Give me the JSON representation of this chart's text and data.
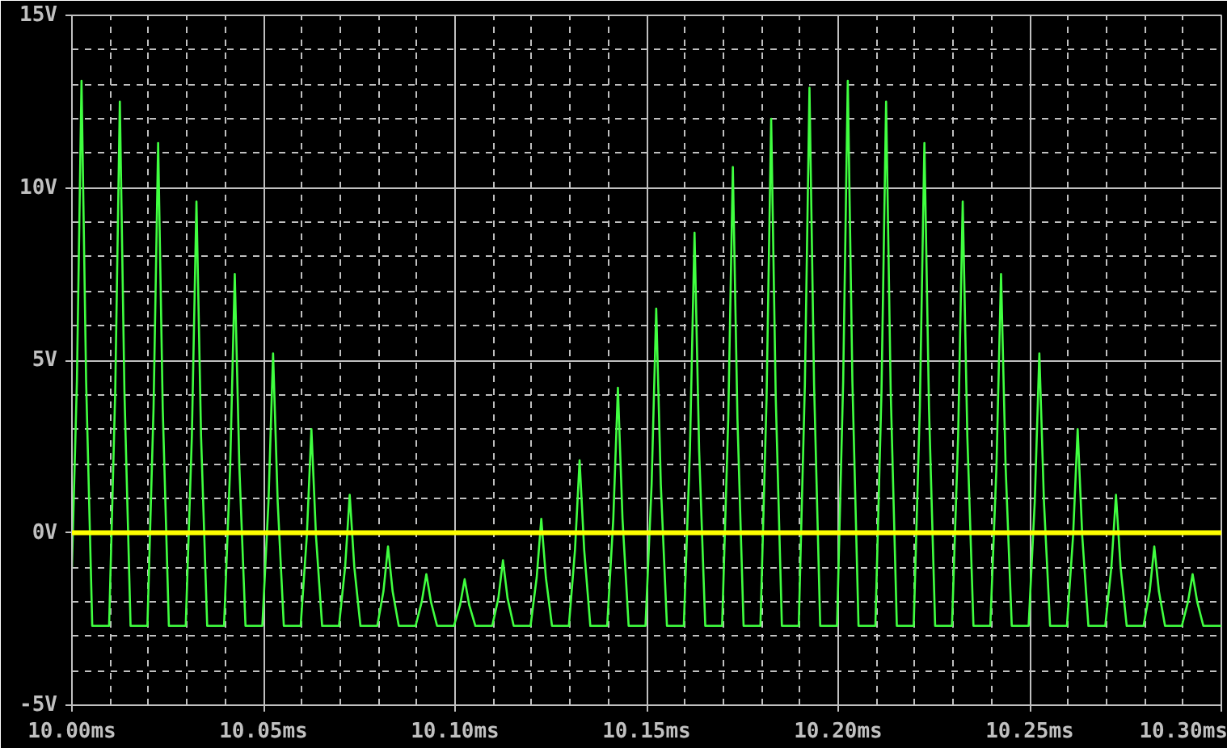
{
  "chart_data": {
    "type": "line",
    "xlim": [
      10.0,
      10.3
    ],
    "ylim": [
      -5,
      15
    ],
    "xticks": [
      {
        "value": 10.0,
        "label": "10.00ms"
      },
      {
        "value": 10.05,
        "label": "10.05ms"
      },
      {
        "value": 10.1,
        "label": "10.10ms"
      },
      {
        "value": 10.15,
        "label": "10.15ms"
      },
      {
        "value": 10.2,
        "label": "10.20ms"
      },
      {
        "value": 10.25,
        "label": "10.25ms"
      },
      {
        "value": 10.3,
        "label": "10.30ms"
      }
    ],
    "yticks": [
      {
        "value": -5,
        "label": "-5V"
      },
      {
        "value": 0,
        "label": "0V"
      },
      {
        "value": 5,
        "label": "5V"
      },
      {
        "value": 10,
        "label": "10V"
      },
      {
        "value": 15,
        "label": "15V"
      }
    ],
    "grid": true,
    "marker": "none",
    "line_style": "solid",
    "ref_lines": [
      {
        "axis": "y",
        "value": 0,
        "color": "#ffff00",
        "line_style": "solid"
      }
    ],
    "series": [
      {
        "color": "#40ff40",
        "x": [
          10.0,
          10.0013,
          10.0025,
          10.0037,
          10.0053,
          10.0097,
          10.0113,
          10.0125,
          10.0137,
          10.0153,
          10.0197,
          10.0213,
          10.0225,
          10.0237,
          10.0253,
          10.0297,
          10.0313,
          10.0325,
          10.0337,
          10.0353,
          10.0397,
          10.0413,
          10.0425,
          10.0437,
          10.0453,
          10.0497,
          10.0513,
          10.0525,
          10.0537,
          10.0553,
          10.0597,
          10.0613,
          10.0625,
          10.0637,
          10.0653,
          10.0697,
          10.0713,
          10.0725,
          10.0737,
          10.0753,
          10.0797,
          10.0813,
          10.0825,
          10.0837,
          10.0853,
          10.0897,
          10.0913,
          10.0925,
          10.0937,
          10.0953,
          10.0997,
          10.1013,
          10.1025,
          10.1037,
          10.1053,
          10.1097,
          10.1113,
          10.1125,
          10.1137,
          10.1153,
          10.1197,
          10.1213,
          10.1225,
          10.1237,
          10.1253,
          10.1297,
          10.1313,
          10.1325,
          10.1337,
          10.1353,
          10.1397,
          10.1413,
          10.1425,
          10.1437,
          10.1453,
          10.1497,
          10.1513,
          10.1525,
          10.1537,
          10.1553,
          10.1597,
          10.1613,
          10.1625,
          10.1637,
          10.1653,
          10.1697,
          10.1713,
          10.1725,
          10.1737,
          10.1753,
          10.1797,
          10.1813,
          10.1825,
          10.1837,
          10.1853,
          10.1897,
          10.1913,
          10.1925,
          10.1937,
          10.1953,
          10.1997,
          10.2013,
          10.2025,
          10.2037,
          10.2053,
          10.2097,
          10.2113,
          10.2125,
          10.2137,
          10.2153,
          10.2197,
          10.2213,
          10.2225,
          10.2237,
          10.2253,
          10.2297,
          10.2313,
          10.2325,
          10.2337,
          10.2353,
          10.2397,
          10.2413,
          10.2425,
          10.2437,
          10.2453,
          10.2497,
          10.2513,
          10.2525,
          10.2537,
          10.2553,
          10.2597,
          10.2613,
          10.2625,
          10.2637,
          10.2653,
          10.2697,
          10.2713,
          10.2725,
          10.2737,
          10.2753,
          10.2797,
          10.2813,
          10.2825,
          10.2837,
          10.2853,
          10.2897,
          10.2913,
          10.2925,
          10.2937,
          10.2953,
          10.3
        ],
        "values": [
          -1.0,
          4.4,
          13.1,
          4.4,
          -2.7,
          -2.7,
          4.1,
          12.5,
          4.1,
          -2.7,
          -2.7,
          3.6,
          11.3,
          3.6,
          -2.7,
          -2.7,
          2.8,
          9.6,
          2.8,
          -2.7,
          -2.7,
          1.9,
          7.5,
          1.9,
          -2.7,
          -2.7,
          0.9,
          5.2,
          0.9,
          -2.7,
          -2.7,
          -0.1,
          3.0,
          -0.1,
          -2.7,
          -2.7,
          -1.0,
          1.1,
          -1.0,
          -2.7,
          -2.7,
          -1.7,
          -0.4,
          -1.7,
          -2.7,
          -2.7,
          -2.0,
          -1.2,
          -2.0,
          -2.7,
          -2.7,
          -2.1,
          -1.35,
          -2.1,
          -2.7,
          -2.7,
          -1.9,
          -0.8,
          -1.9,
          -2.7,
          -2.7,
          -1.3,
          0.4,
          -1.3,
          -2.7,
          -2.7,
          -0.5,
          2.1,
          -0.5,
          -2.7,
          -2.7,
          0.4,
          4.2,
          0.4,
          -2.7,
          -2.7,
          1.4,
          6.5,
          1.4,
          -2.7,
          -2.7,
          2.4,
          8.7,
          2.4,
          -2.7,
          -2.7,
          3.3,
          10.6,
          3.3,
          -2.7,
          -2.7,
          3.9,
          12.0,
          3.9,
          -2.7,
          -2.7,
          4.3,
          12.9,
          4.3,
          -2.7,
          -2.7,
          4.4,
          13.1,
          4.4,
          -2.7,
          -2.7,
          4.1,
          12.5,
          4.1,
          -2.7,
          -2.7,
          3.6,
          11.3,
          3.6,
          -2.7,
          -2.7,
          2.8,
          9.6,
          2.8,
          -2.7,
          -2.7,
          1.9,
          7.5,
          1.9,
          -2.7,
          -2.7,
          0.9,
          5.2,
          0.9,
          -2.7,
          -2.7,
          -0.1,
          3.0,
          -0.1,
          -2.7,
          -2.7,
          -1.0,
          1.1,
          -1.0,
          -2.7,
          -2.7,
          -1.7,
          -0.4,
          -1.7,
          -2.7,
          -2.7,
          -2.0,
          -1.2,
          -2.0,
          -2.7,
          -2.7
        ]
      }
    ]
  }
}
